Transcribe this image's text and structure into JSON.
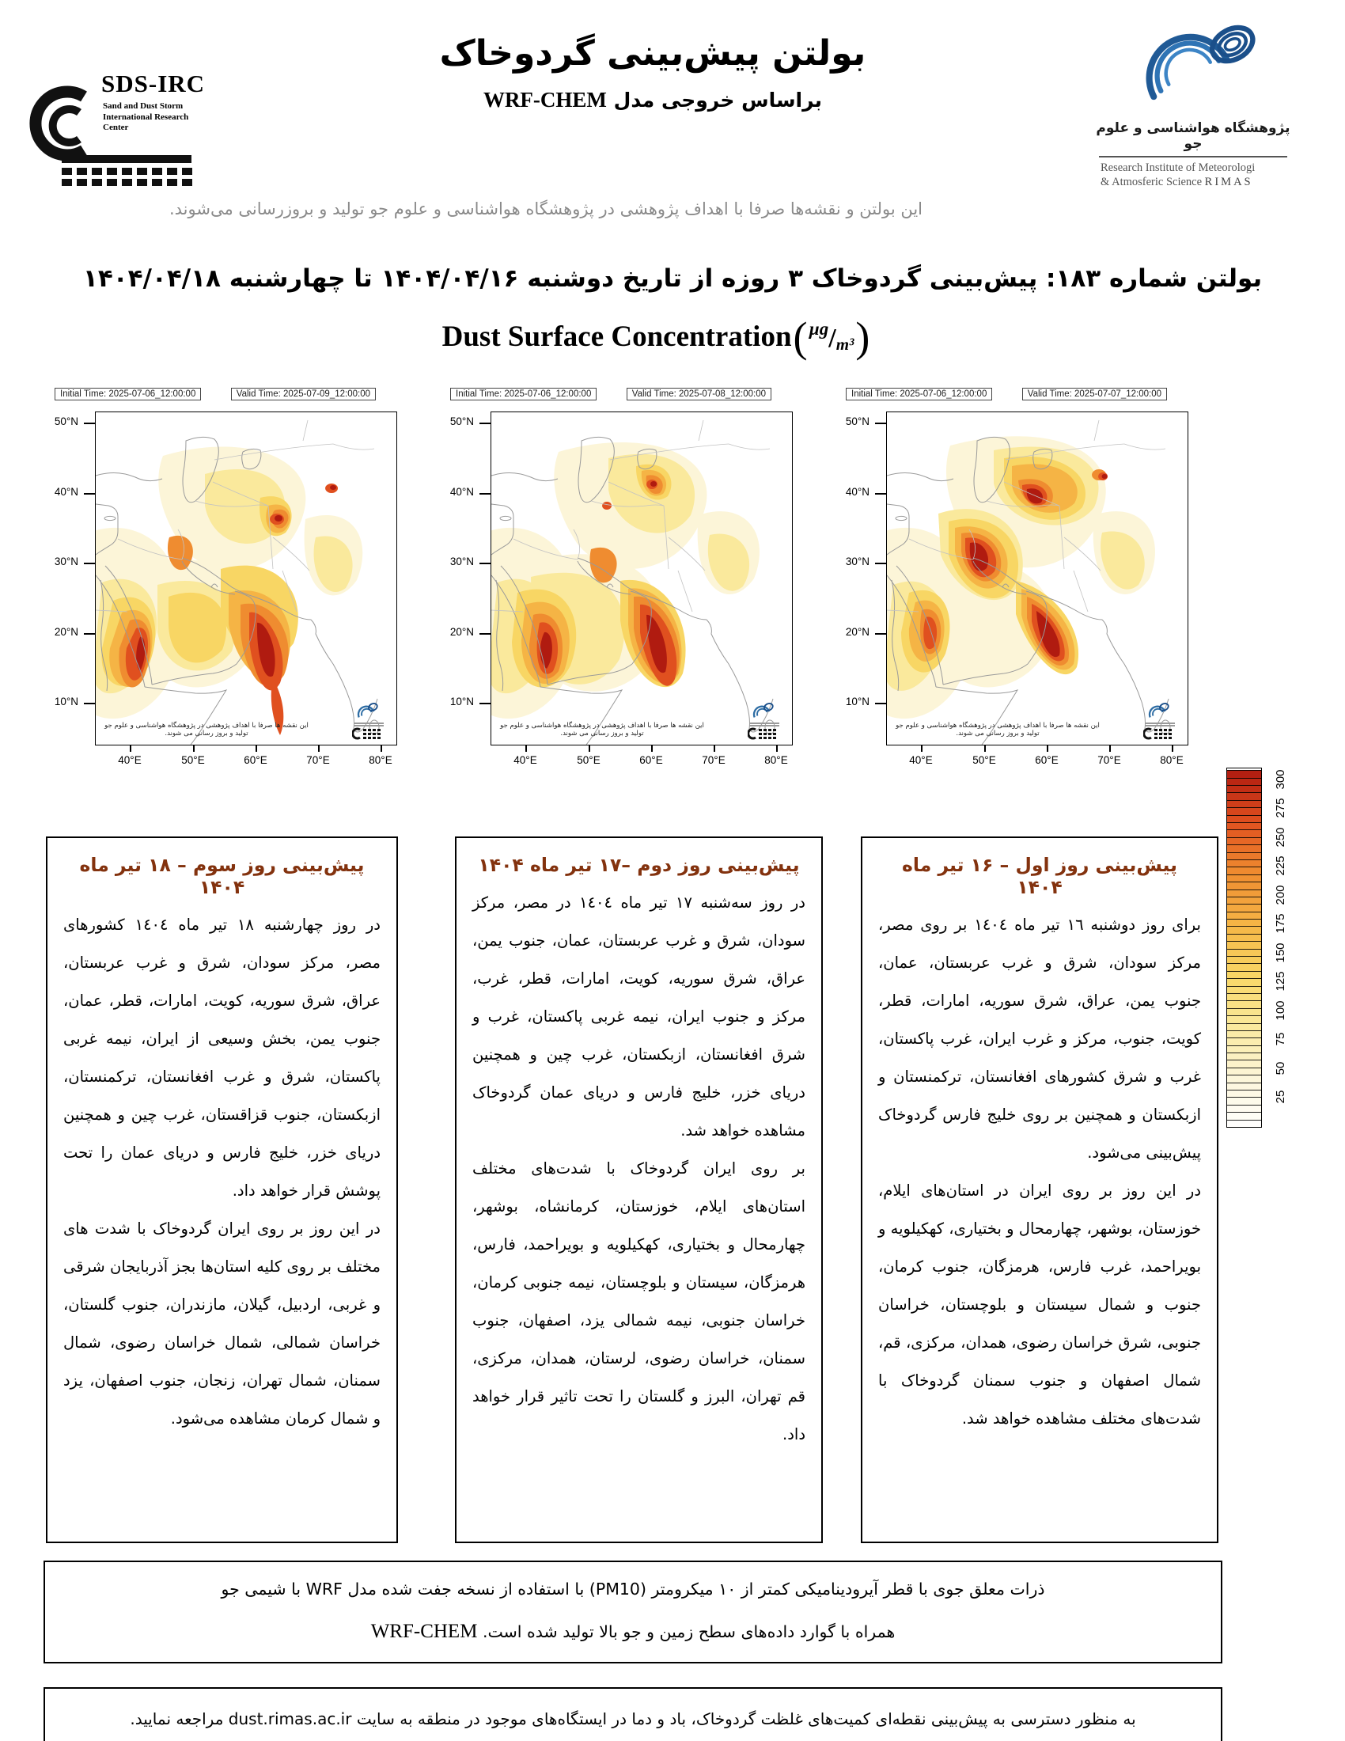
{
  "header": {
    "sds_logo": {
      "acronym": "SDS-IRC",
      "line1": "Sand and Dust Storm",
      "line2": "International Research Center"
    },
    "title": "بولتن پیش‌بینی گردوخاک",
    "subtitle_prefix": "براساس خروجی مدل",
    "subtitle_model": "WRF-CHEM",
    "rimas_logo": {
      "persian": "پژوهشگاه هواشناسی و علوم جو",
      "english_line1": "Research Institute of Meteorologi",
      "english_line2": "& Atmosferic Science",
      "acronym": "RIMAS"
    },
    "disclaimer": "این بولتن و نقشه‌ها صرفا با اهداف پژوهشی در پژوهشگاه هواشناسی و علوم جو تولید و بروزرسانی می‌شوند.",
    "bulletin_line": "بولتن شماره ۱۸۳: پیش‌بینی گردوخاک ۳ روزه از تاریخ دوشنبه ۱۴۰۴/۰۴/۱۶ تا چهارشنبه ۱۴۰۴/۰۴/۱۸"
  },
  "map_section": {
    "title": "Dust Surface Concentration",
    "unit_numerator": "µg",
    "unit_denominator": "m³"
  },
  "maps": [
    {
      "initial_label": "Initial Time: 2025-07-06_12:00:00",
      "valid_label": "Valid Time: 2025-07-09_12:00:00",
      "lat_ticks": [
        "50°N",
        "40°N",
        "30°N",
        "20°N",
        "10°N"
      ],
      "lon_ticks": [
        "40°E",
        "50°E",
        "60°E",
        "70°E",
        "80°E"
      ],
      "inner_note": "این نقشه ها صرفا با اهداف پژوهشی در پژوهشگاه هواشناسی و علوم جو تولید و بروز رسانی می شوند."
    },
    {
      "initial_label": "Initial Time: 2025-07-06_12:00:00",
      "valid_label": "Valid Time: 2025-07-08_12:00:00",
      "lat_ticks": [
        "50°N",
        "40°N",
        "30°N",
        "20°N",
        "10°N"
      ],
      "lon_ticks": [
        "40°E",
        "50°E",
        "60°E",
        "70°E",
        "80°E"
      ],
      "inner_note": "این نقشه ها صرفا با اهداف پژوهشی در پژوهشگاه هواشناسی و علوم جو تولید و بروز رسانی می شوند."
    },
    {
      "initial_label": "Initial Time: 2025-07-06_12:00:00",
      "valid_label": "Valid Time: 2025-07-07_12:00:00",
      "lat_ticks": [
        "50°N",
        "40°N",
        "30°N",
        "20°N",
        "10°N"
      ],
      "lon_ticks": [
        "40°E",
        "50°E",
        "60°E",
        "70°E",
        "80°E"
      ],
      "inner_note": "این نقشه ها صرفا با اهداف پژوهشی در پژوهشگاه هواشناسی و علوم جو تولید و بروز رسانی می شوند."
    }
  ],
  "colorbar": {
    "ticks": [
      "25",
      "50",
      "75",
      "100",
      "125",
      "150",
      "175",
      "200",
      "225",
      "250",
      "275",
      "300"
    ],
    "stops": [
      "#FFFFFF",
      "#FCF5D8",
      "#FAE99C",
      "#F8D664",
      "#F5B445",
      "#EF8C30",
      "#E0501F",
      "#B01B10"
    ]
  },
  "forecasts": [
    {
      "title": "پیش‌بینی روز اول – ۱۶ تیر ماه ۱۴۰۴",
      "p1": "برای روز دوشنبه ١٦ تیر ماه ١٤٠٤ بر روی مصر، مرکز سودان، شرق و غرب عربستان، عمان، جنوب یمن، عراق، شرق سوریه، امارات، قطر، کویت، جنوب، مرکز و غرب ایران، غرب پاکستان، غرب و شرق کشورهای افغانستان، ترکمنستان و ازبکستان و همچنین بر روی خلیج فارس گردوخاک پیش‌بینی می‌شود.",
      "p2": "در این روز بر روی ایران در استان‌های ایلام، خوزستان، بوشهر، چهارمحال و بختیاری، کهکیلویه و بویراحمد، غرب فارس، هرمزگان، جنوب کرمان، جنوب و شمال سیستان و بلوچستان، خراسان جنوبی، شرق خراسان رضوی، همدان، مرکزی، قم، شمال اصفهان و جنوب سمنان گردوخاک با شدت‌های مختلف مشاهده خواهد شد."
    },
    {
      "title": "پیش‌بینی روز دوم –۱۷ تیر ماه ۱۴۰۴",
      "p1": "در روز سه‌شنبه ١٧ تیر ماه ١٤٠٤ در مصر، مرکز سودان، شرق و غرب عربستان، عمان، جنوب یمن، عراق، شرق سوریه، کویت، امارات، قطر، غرب، مرکز و جنوب ایران، نیمه غربی پاکستان، غرب و شرق افغانستان، ازبکستان، غرب چین و همچنین دریای خزر، خلیج فارس و دریای عمان گردوخاک مشاهده خواهد شد.",
      "p2": "بر روی ایران گردوخاک با شدت‌های مختلف استان‌های ایلام، خوزستان، کرمانشاه، بوشهر، چهارمحال و بختیاری، کهکیلویه و بویراحمد، فارس، هرمزگان، سیستان و بلوچستان، نیمه جنوبی کرمان، خراسان جنوبی، نیمه شمالی یزد، اصفهان، جنوب سمنان، خراسان رضوی، لرستان، همدان، مرکزی، قم تهران، البرز و گلستان را تحت تاثیر قرار خواهد داد."
    },
    {
      "title": "پیش‌بینی روز سوم – ۱۸ تیر ماه ۱۴۰۴",
      "p1": "در روز چهارشنبه ١٨ تیر ماه ١٤٠٤ کشورهای مصر، مرکز سودان، شرق و غرب عربستان، عراق، شرق سوریه، کویت، امارات، قطر، عمان، جنوب یمن، بخش وسیعی از ایران، نیمه غربی پاکستان، شرق و غرب افغانستان، ترکمنستان، ازبکستان، جنوب قزاقستان، غرب چین و همچنین دریای خزر، خلیج فارس و دریای عمان را تحت پوشش قرار خواهد داد.",
      "p2": "در این روز بر روی ایران گردوخاک با شدت های مختلف بر روی کلیه استان‌ها بجز آذربایجان شرقی و غربی، اردبیل، گیلان، مازندران، جنوب گلستان، خراسان شمالی، شمال خراسان رضوی، شمال سمنان، شمال تهران، زنجان، جنوب اصفهان، یزد و شمال کرمان مشاهده می‌شود."
    }
  ],
  "notes": {
    "box1_line1": "ذرات معلق جوی با قطر آیرودینامیکی کمتر از ۱۰ میکرومتر (PM10) با استفاده از نسخه جفت شده مدل WRF با شیمی جو",
    "box1_line2_latin": "WRF-CHEM",
    "box1_line2_fa": "همراه با گوارد داده‌های سطح زمین و جو بالا تولید شده است.",
    "box2": "به منظور دسترسی به پیش‌بینی نقطه‌ای کمیت‌های غلظت گردوخاک، باد و دما در ایستگاه‌های موجود در منطقه به سایت dust.rimas.ac.ir مراجعه نمایید."
  }
}
